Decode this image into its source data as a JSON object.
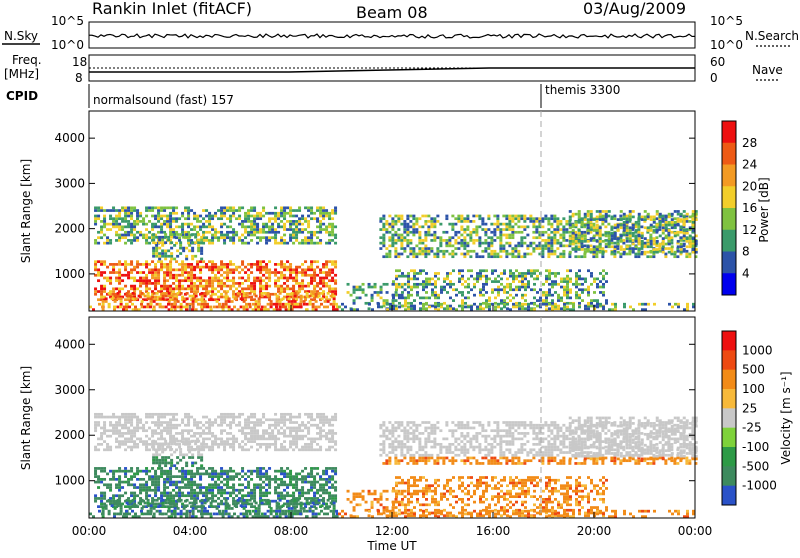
{
  "header": {
    "station": "Rankin Inlet (fitACF)",
    "beam": "Beam 08",
    "date": "03/Aug/2009"
  },
  "noise_panel": {
    "left_label": "N.Sky",
    "right_label": "N.Search",
    "left_ticks": [
      "10^5",
      "10^0"
    ],
    "right_ticks": [
      "10^5",
      "10^0"
    ]
  },
  "freq_panel": {
    "left_label_1": "Freq.",
    "left_label_2": "[MHz]",
    "right_label": "Nave",
    "left_ticks": [
      "18",
      "8"
    ],
    "right_ticks": [
      "60",
      "0"
    ]
  },
  "cpid": {
    "label": "CPID",
    "modes": [
      {
        "text": "normalsound (fast) 157"
      },
      {
        "text": "themis 3300"
      }
    ]
  },
  "chart_data": [
    {
      "type": "heatmap",
      "panel": "power",
      "xlabel": "",
      "ylabel": "Slant Range [km]",
      "y_ticks": [
        "1000",
        "2000",
        "3000",
        "4000"
      ],
      "ylim": [
        180,
        4600
      ],
      "xlim": [
        0,
        24
      ],
      "colorbar": {
        "label": "Power [dB]",
        "ticks": [
          "4",
          "8",
          "12",
          "16",
          "20",
          "24",
          "28"
        ],
        "colors": [
          "#0000ee",
          "#2c53a8",
          "#3a9a6a",
          "#7fc240",
          "#f2ce2a",
          "#f39a23",
          "#ee5a15",
          "#ee1010"
        ]
      }
    },
    {
      "type": "heatmap",
      "panel": "velocity",
      "xlabel": "Time UT",
      "ylabel": "Slant Range [km]",
      "y_ticks": [
        "1000",
        "2000",
        "3000",
        "4000"
      ],
      "x_ticks": [
        "00:00",
        "04:00",
        "08:00",
        "12:00",
        "16:00",
        "20:00",
        "00:00"
      ],
      "ylim": [
        180,
        4600
      ],
      "xlim": [
        0,
        24
      ],
      "colorbar": {
        "label": "Velocity [m s⁻¹]",
        "ticks": [
          "1000",
          "500",
          "100",
          "25",
          "-25",
          "-100",
          "-500",
          "-1000"
        ],
        "colors": [
          "#2a52c8",
          "#3d8a5e",
          "#2d9a46",
          "#7ed23a",
          "#c8c8c8",
          "#f7b93a",
          "#f28b17",
          "#ee4a12",
          "#ee1010"
        ]
      }
    }
  ]
}
